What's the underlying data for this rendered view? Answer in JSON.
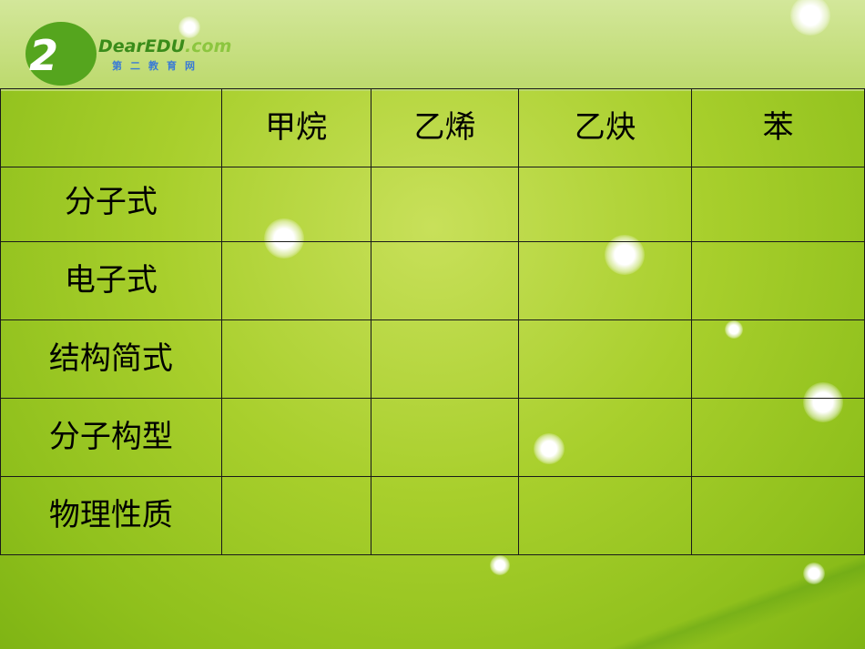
{
  "logo": {
    "text": "DearEDU.com",
    "cn": "第二教育网"
  },
  "table": {
    "header": [
      "",
      "甲烷",
      "乙烯",
      "乙炔",
      "苯"
    ],
    "rows": [
      "分子式",
      "电子式",
      "结构简式",
      "分子构型",
      "物理性质"
    ]
  }
}
